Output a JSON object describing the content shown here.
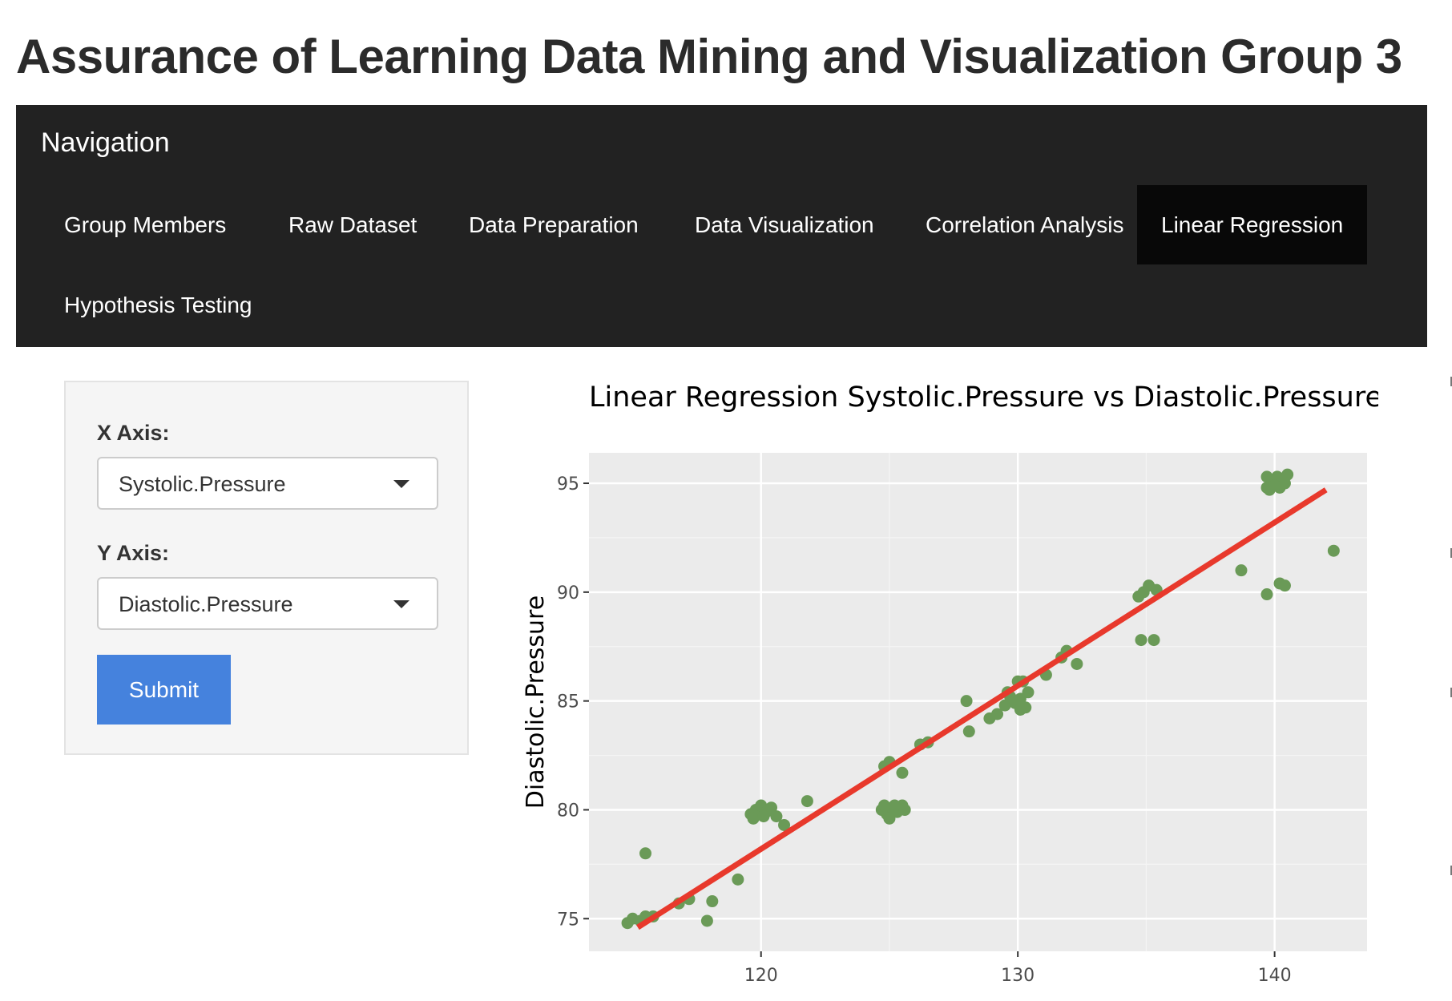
{
  "app": {
    "title": "Assurance of Learning Data Mining and Visualization Group 3"
  },
  "navbar": {
    "brand": "Navigation",
    "tabs": [
      {
        "label": "Group Members",
        "active": false
      },
      {
        "label": "Raw Dataset",
        "active": false
      },
      {
        "label": "Data Preparation",
        "active": false
      },
      {
        "label": "Data Visualization",
        "active": false
      },
      {
        "label": "Correlation Analysis",
        "active": false
      },
      {
        "label": "Linear Regression",
        "active": true
      },
      {
        "label": "Hypothesis Testing",
        "active": false
      }
    ]
  },
  "sidebar": {
    "x_axis_label": "X Axis:",
    "x_axis_value": "Systolic.Pressure",
    "y_axis_label": "Y Axis:",
    "y_axis_value": "Diastolic.Pressure",
    "submit_label": "Submit"
  },
  "colors": {
    "navbar_bg": "#222222",
    "active_tab_bg": "#080808",
    "submit_bg": "#4582dd",
    "point_color": "#6a9a57",
    "line_color": "#e8392c",
    "panel_bg": "#ebebeb"
  },
  "chart_data": {
    "type": "scatter",
    "title": "Linear Regression Systolic.Pressure vs Diastolic.Pressure",
    "xlabel": "",
    "ylabel": "Diastolic.Pressure",
    "xlim": [
      113.3,
      143.6
    ],
    "ylim": [
      73.5,
      96.4
    ],
    "xticks": [
      120,
      130,
      140
    ],
    "yticks": [
      75,
      80,
      85,
      90,
      95
    ],
    "grid": true,
    "points": [
      [
        114.8,
        74.8
      ],
      [
        115.0,
        75.0
      ],
      [
        115.3,
        74.9
      ],
      [
        115.5,
        75.1
      ],
      [
        115.8,
        75.1
      ],
      [
        115.5,
        78.0
      ],
      [
        116.8,
        75.7
      ],
      [
        117.2,
        75.9
      ],
      [
        117.9,
        74.9
      ],
      [
        118.1,
        75.8
      ],
      [
        119.1,
        76.8
      ],
      [
        119.6,
        79.8
      ],
      [
        119.8,
        80.0
      ],
      [
        120.0,
        80.2
      ],
      [
        120.2,
        79.9
      ],
      [
        120.4,
        80.1
      ],
      [
        119.7,
        79.6
      ],
      [
        120.1,
        79.7
      ],
      [
        120.6,
        79.7
      ],
      [
        120.9,
        79.3
      ],
      [
        121.8,
        80.4
      ],
      [
        124.8,
        82.0
      ],
      [
        125.0,
        82.2
      ],
      [
        125.5,
        81.7
      ],
      [
        124.9,
        79.8
      ],
      [
        125.1,
        80.1
      ],
      [
        125.3,
        79.9
      ],
      [
        125.5,
        80.2
      ],
      [
        124.7,
        80.0
      ],
      [
        125.0,
        79.6
      ],
      [
        125.6,
        80.0
      ],
      [
        125.2,
        80.2
      ],
      [
        124.8,
        80.2
      ],
      [
        126.2,
        83.0
      ],
      [
        126.5,
        83.1
      ],
      [
        128.0,
        85.0
      ],
      [
        128.1,
        83.6
      ],
      [
        128.9,
        84.2
      ],
      [
        129.2,
        84.4
      ],
      [
        129.5,
        84.8
      ],
      [
        129.7,
        85.2
      ],
      [
        129.9,
        84.9
      ],
      [
        130.1,
        85.1
      ],
      [
        130.3,
        84.7
      ],
      [
        130.0,
        85.9
      ],
      [
        130.2,
        85.9
      ],
      [
        130.4,
        85.4
      ],
      [
        129.6,
        85.4
      ],
      [
        130.1,
        84.6
      ],
      [
        131.1,
        86.2
      ],
      [
        131.7,
        87.0
      ],
      [
        131.9,
        87.3
      ],
      [
        132.3,
        86.7
      ],
      [
        134.7,
        89.8
      ],
      [
        134.9,
        90.0
      ],
      [
        135.1,
        90.3
      ],
      [
        135.4,
        90.1
      ],
      [
        134.8,
        87.8
      ],
      [
        135.3,
        87.8
      ],
      [
        138.7,
        91.0
      ],
      [
        139.7,
        89.9
      ],
      [
        140.2,
        90.4
      ],
      [
        140.4,
        90.3
      ],
      [
        142.3,
        91.9
      ],
      [
        139.7,
        95.3
      ],
      [
        139.9,
        95.0
      ],
      [
        140.1,
        95.3
      ],
      [
        140.3,
        95.1
      ],
      [
        140.5,
        95.4
      ],
      [
        139.8,
        94.7
      ],
      [
        140.2,
        94.8
      ],
      [
        140.4,
        95.0
      ],
      [
        139.7,
        94.8
      ],
      [
        140.0,
        94.9
      ]
    ],
    "regression_line": {
      "x": [
        115.2,
        142.0
      ],
      "y": [
        74.6,
        94.7
      ]
    }
  }
}
